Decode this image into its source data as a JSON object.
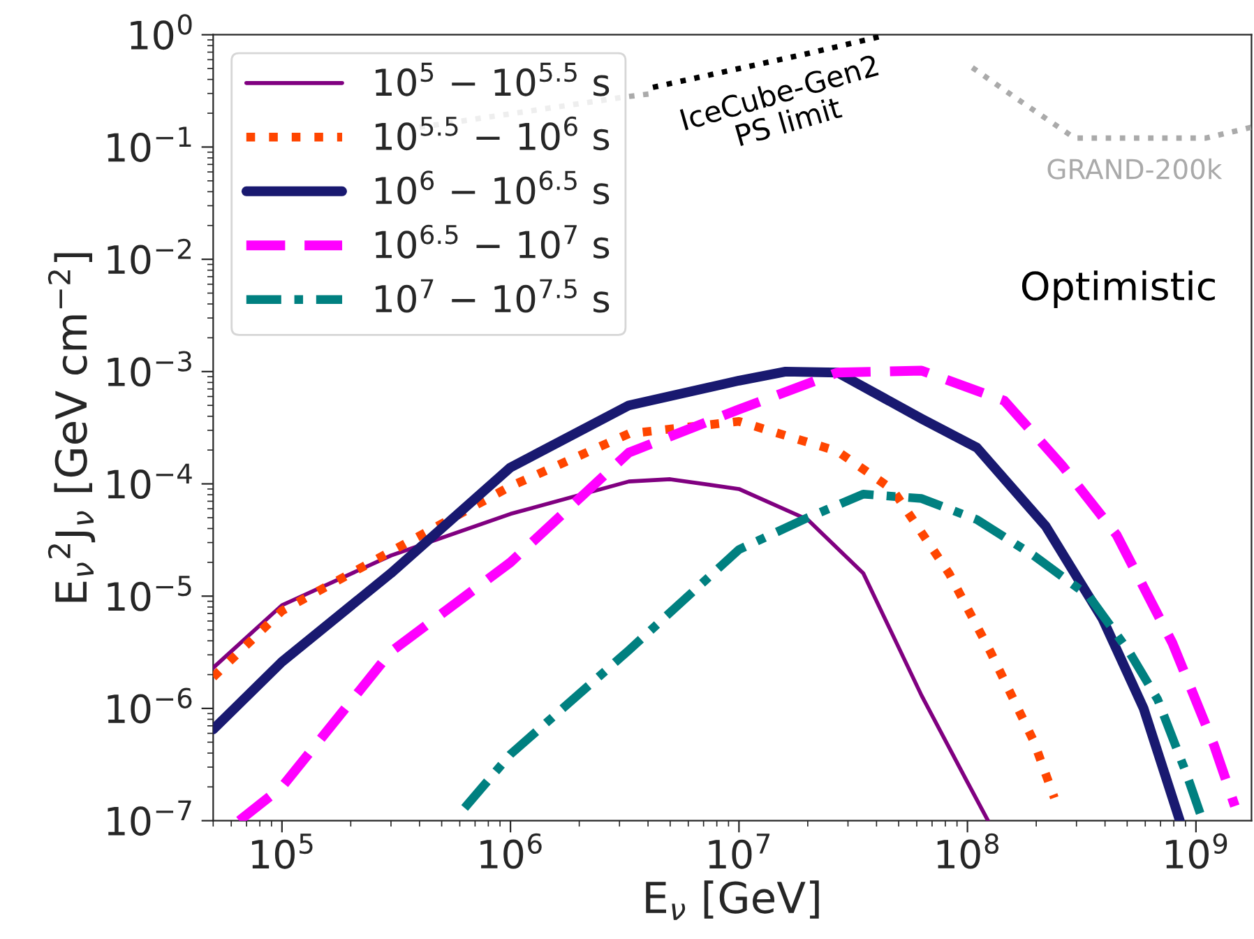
{
  "chart_data": {
    "type": "line",
    "xlabel": "E$_{ν}$ [GeV]",
    "ylabel": "E$_{ν}$$^{2}$J$_{ν}$ [GeV cm$^{−2}$]",
    "log": "xy",
    "grid": false,
    "legend": "top left",
    "xlim": [
      50000.0,
      1750000000.0
    ],
    "ylim": [
      1e-07,
      1
    ],
    "xticks": [
      {
        "value": 100000.0,
        "label": "10$^{5}$"
      },
      {
        "value": 1000000.0,
        "label": "10$^{6}$"
      },
      {
        "value": 10000000.0,
        "label": "10$^{7}$"
      },
      {
        "value": 100000000.0,
        "label": "10$^{8}$"
      },
      {
        "value": 1000000000.0,
        "label": "10$^{9}$"
      }
    ],
    "yticks": [
      {
        "value": 1e-07,
        "label": "10$^{−7}$"
      },
      {
        "value": 1e-06,
        "label": "10$^{−6}$"
      },
      {
        "value": 1e-05,
        "label": "10$^{−5}$"
      },
      {
        "value": 0.0001,
        "label": "10$^{−4}$"
      },
      {
        "value": 0.001,
        "label": "10$^{−3}$"
      },
      {
        "value": 0.01,
        "label": "10$^{−2}$"
      },
      {
        "value": 0.1,
        "label": "10$^{−1}$"
      },
      {
        "value": 1,
        "label": "10$^{0}$"
      }
    ],
    "series": [
      {
        "name": "10$^{5}$ − 10$^{5.5}$ s",
        "color": "#800080",
        "line_style": "solid",
        "x": [
          50000.0,
          100000.0,
          300000.0,
          1000000.0,
          3300000.0,
          5000000.0,
          10000000.0,
          20000000.0,
          35000000.0,
          63000000.0,
          100000000.0,
          123000000.0
        ],
        "values": [
          2.3e-06,
          8.3e-06,
          2.3e-05,
          5.4e-05,
          0.000105,
          0.00011,
          9e-05,
          4.8e-05,
          1.6e-05,
          1.3e-06,
          2.2e-07,
          1e-07
        ]
      },
      {
        "name": "10$^{5.5}$ − 10$^{6}$ s",
        "color": "#ff4500",
        "line_style": "dotted",
        "x": [
          50000.0,
          100000.0,
          300000.0,
          1000000.0,
          3300000.0,
          10000000.0,
          27000000.0,
          47000000.0,
          83000000.0,
          126000000.0,
          195000000.0,
          240000000.0
        ],
        "values": [
          1.9e-06,
          7.4e-06,
          2.5e-05,
          9.5e-05,
          0.00028,
          0.00036,
          0.000195,
          8.9e-05,
          1.6e-05,
          3.2e-06,
          5.1e-07,
          1.6e-07
        ]
      },
      {
        "name": "10$^{6}$ − 10$^{6.5}$ s",
        "color": "#191970",
        "line_style": "solid",
        "x": [
          50000.0,
          100000.0,
          300000.0,
          1000000.0,
          3300000.0,
          10000000.0,
          16000000.0,
          27000000.0,
          63000000.0,
          110000000.0,
          220000000.0,
          390000000.0,
          590000000.0,
          850000000.0
        ],
        "values": [
          6.5e-07,
          2.6e-06,
          1.6e-05,
          0.00014,
          0.0005,
          0.00083,
          0.001,
          0.00098,
          0.00038,
          0.00021,
          4.2e-05,
          6.3e-06,
          1e-06,
          1e-07
        ]
      },
      {
        "name": "10$^{6.5}$ − 10$^{7}$ s",
        "color": "#ff00ff",
        "line_style": "dashed",
        "x": [
          65000.0,
          100000.0,
          300000.0,
          1000000.0,
          3300000.0,
          10000000.0,
          27000000.0,
          63000000.0,
          145000000.0,
          260000000.0,
          450000000.0,
          790000000.0,
          1200000000.0,
          1480000000.0
        ],
        "values": [
          1e-07,
          2e-07,
          3.2e-06,
          2e-05,
          0.00019,
          0.00046,
          0.00098,
          0.00102,
          0.00055,
          0.000145,
          3.5e-05,
          3.8e-06,
          4.7e-07,
          1.35e-07
        ]
      },
      {
        "name": "10$^{7}$ − 10$^{7.5}$ s",
        "color": "#008080",
        "line_style": "dashdot",
        "x": [
          630000.0,
          1000000.0,
          3300000.0,
          10000000.0,
          20000000.0,
          35000000.0,
          63000000.0,
          110000000.0,
          195000000.0,
          340000000.0,
          510000000.0,
          680000000.0,
          910000000.0,
          1070000000.0
        ],
        "values": [
          1.3e-07,
          3.9e-07,
          3.3e-06,
          2.6e-05,
          5e-05,
          8.1e-05,
          7.4e-05,
          4.8e-05,
          2.3e-05,
          1e-05,
          3.2e-06,
          1.2e-06,
          2.6e-07,
          1e-07
        ]
      },
      {
        "color": "#000000",
        "line_style": "dotted",
        "x": [
          4200000.0,
          10000000.0,
          20000000.0,
          43000000.0
        ],
        "values": [
          0.34,
          0.5,
          0.68,
          0.98
        ]
      },
      {
        "color": "#aaaaaa",
        "line_style": "dotted",
        "x": [
          400000.0,
          3200000.0,
          4200000.0,
          10000000.0,
          105000000.0,
          160000000.0,
          295000000.0,
          1100000000.0,
          1750000000.0
        ],
        "values": [
          0.15,
          0.28,
          0.3,
          null,
          0.51,
          0.28,
          0.12,
          0.12,
          0.15
        ]
      }
    ],
    "annotations": [
      "IceCube-Gen2\nPS limit",
      "GRAND-200k",
      "Optimistic"
    ]
  }
}
